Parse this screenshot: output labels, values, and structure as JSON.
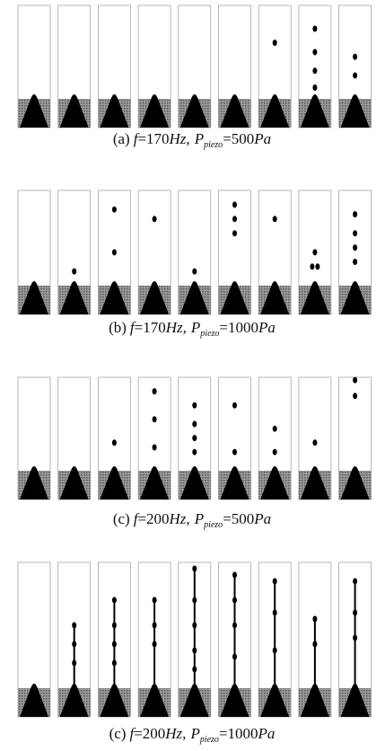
{
  "figure": {
    "captions": [
      {
        "label": "(a)",
        "f": "f",
        "freq": "=170",
        "hz": "Hz,",
        "p": "P",
        "sub": "piezo",
        "pval": "=500",
        "pa": "Pa"
      },
      {
        "label": "(b)",
        "f": "f",
        "freq": "=170",
        "hz": "Hz,",
        "p": "P",
        "sub": "piezo",
        "pval": "=1000",
        "pa": "Pa"
      },
      {
        "label": "(c)",
        "f": "f",
        "freq": "=200",
        "hz": "Hz,",
        "p": "P",
        "sub": "piezo",
        "pval": "=500",
        "pa": "Pa"
      },
      {
        "label": "(c)",
        "f": "f",
        "freq": "=200",
        "hz": "Hz,",
        "p": "P",
        "sub": "piezo",
        "pval": "=1000",
        "pa": "Pa"
      }
    ]
  }
}
